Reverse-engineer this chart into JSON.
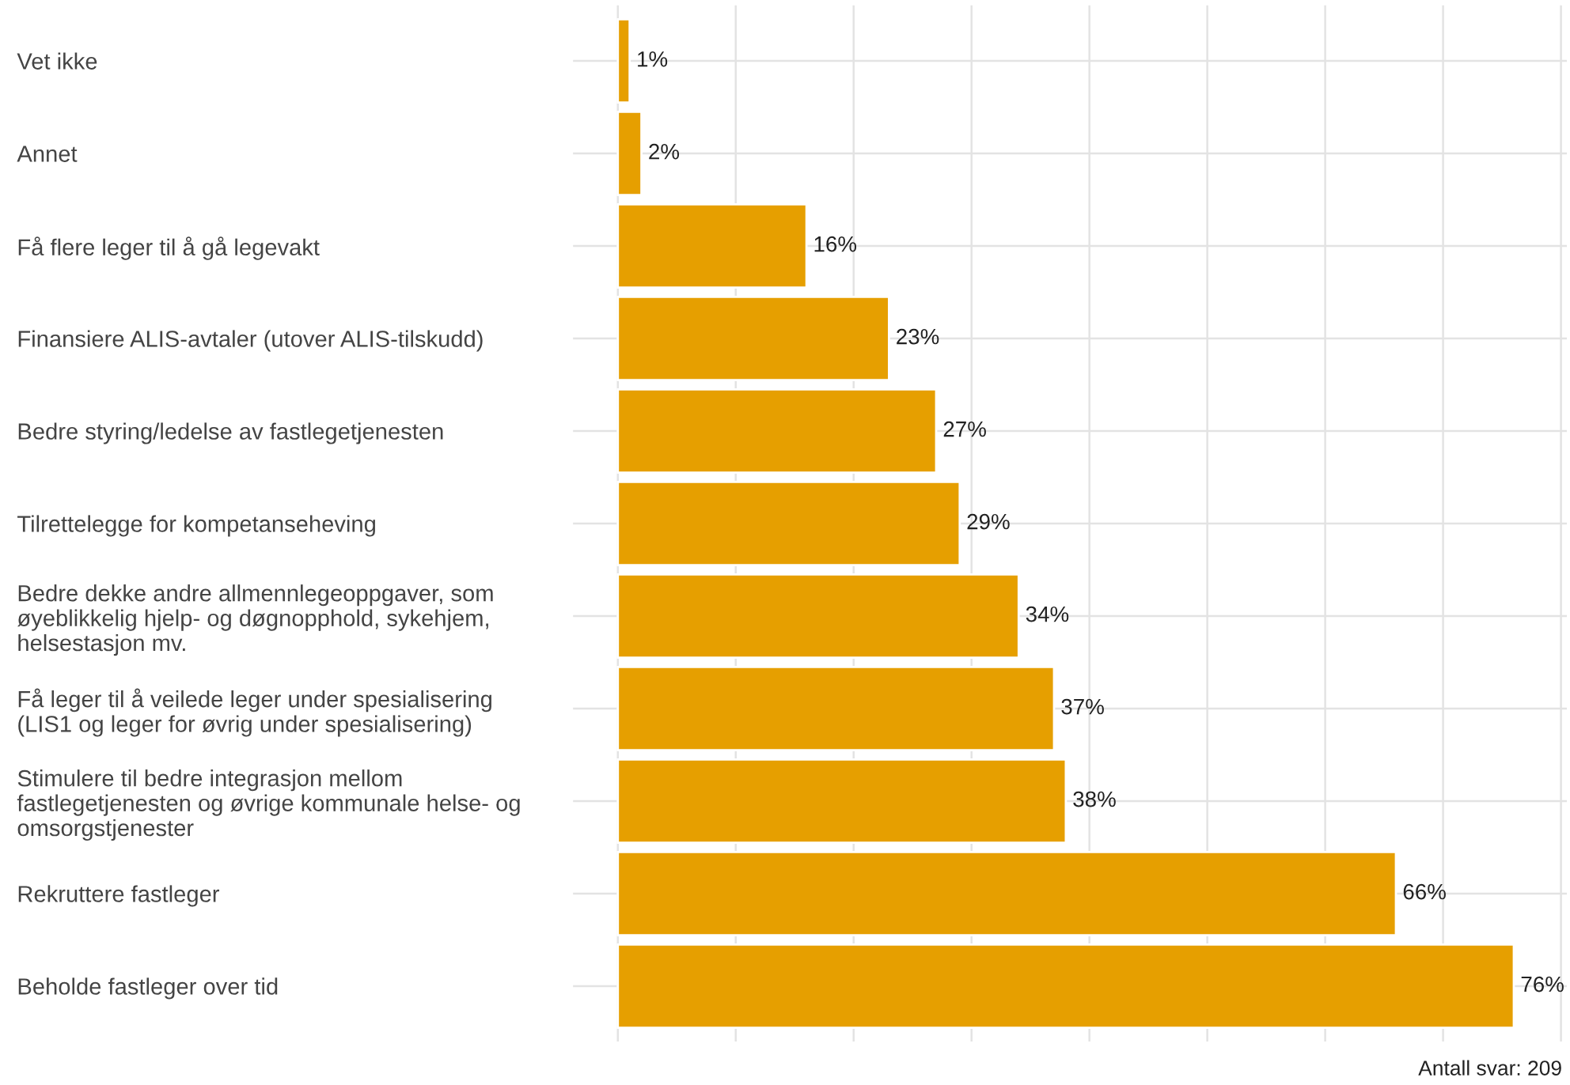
{
  "chart_data": {
    "type": "bar",
    "orientation": "horizontal",
    "categories": [
      "Vet ikke",
      "Annet",
      "Få flere leger til å gå legevakt",
      "Finansiere ALIS-avtaler (utover ALIS-tilskudd)",
      "Bedre styring/ledelse av fastlegetjenesten",
      "Tilrettelegge for kompetanseheving",
      "Bedre dekke andre allmennlegeoppgaver, som\nøyeblikkelig hjelp- og døgnopphold, sykehjem,\nhelsestasjon mv.",
      "Få leger til å veilede leger under spesialisering\n(LIS1 og leger for øvrig under spesialisering)",
      "Stimulere til bedre integrasjon mellom\nfastlegetjenesten og øvrige kommunale helse- og\nomsorgstjenester",
      "Rekruttere fastleger",
      "Beholde fastleger over tid"
    ],
    "values": [
      1,
      2,
      16,
      23,
      27,
      29,
      34,
      37,
      38,
      66,
      76
    ],
    "value_labels": [
      "1%",
      "2%",
      "16%",
      "23%",
      "27%",
      "29%",
      "34%",
      "37%",
      "38%",
      "66%",
      "76%"
    ],
    "color": "#e69f00",
    "xlim": [
      -3.8,
      80.5
    ],
    "xticks": [
      {
        "value": 0,
        "label": null
      },
      {
        "value": 10,
        "label": null
      },
      {
        "value": 20,
        "label": null
      },
      {
        "value": 30,
        "label": null
      },
      {
        "value": 40,
        "label": null
      },
      {
        "value": 50,
        "label": null
      },
      {
        "value": 60,
        "label": null
      },
      {
        "value": 70,
        "label": null
      },
      {
        "value": 80,
        "label": null
      }
    ],
    "tick_labels": "y",
    "grid": true,
    "annotations": [
      "Antall svar: 209"
    ]
  }
}
